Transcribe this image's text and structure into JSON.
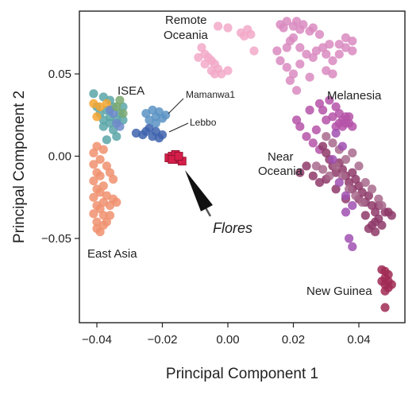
{
  "chart_data": {
    "type": "scatter",
    "xlabel": "Principal Component 1",
    "ylabel": "Principal Component 2",
    "xlim": [
      -0.045,
      0.053
    ],
    "ylim": [
      -0.098,
      0.087
    ],
    "x_ticks": [
      -0.04,
      -0.02,
      0.0,
      0.02,
      0.04
    ],
    "x_tick_labels": [
      "−0.04",
      "−0.02",
      "0.00",
      "0.02",
      "0.04"
    ],
    "y_ticks": [
      -0.05,
      0.0,
      0.05
    ],
    "y_tick_labels": [
      "−0.05",
      "0.00",
      "0.05"
    ],
    "grid": false,
    "legend": "none",
    "series": [
      {
        "name": "East Asia",
        "color": "#f0916e",
        "points": [
          [
            -0.041,
            -0.005
          ],
          [
            -0.04,
            -0.01
          ],
          [
            -0.041,
            -0.015
          ],
          [
            -0.04,
            -0.02
          ],
          [
            -0.041,
            -0.025
          ],
          [
            -0.04,
            -0.03
          ],
          [
            -0.041,
            -0.035
          ],
          [
            -0.04,
            -0.04
          ],
          [
            -0.04,
            -0.044
          ],
          [
            -0.039,
            -0.012
          ],
          [
            -0.039,
            -0.022
          ],
          [
            -0.039,
            -0.032
          ],
          [
            -0.038,
            -0.018
          ],
          [
            -0.038,
            -0.028
          ],
          [
            -0.037,
            -0.024
          ],
          [
            -0.036,
            -0.03
          ],
          [
            -0.035,
            -0.026
          ],
          [
            -0.034,
            -0.028
          ],
          [
            -0.038,
            -0.036
          ],
          [
            -0.037,
            -0.04
          ],
          [
            -0.041,
            0.002
          ],
          [
            -0.039,
            -0.002
          ],
          [
            -0.038,
            0.004
          ],
          [
            -0.037,
            -0.006
          ],
          [
            -0.036,
            -0.01
          ],
          [
            -0.035,
            -0.014
          ],
          [
            -0.04,
            0.006
          ],
          [
            -0.039,
            -0.046
          ],
          [
            -0.038,
            -0.042
          ],
          [
            -0.036,
            -0.036
          ]
        ]
      },
      {
        "name": "ISEA",
        "color": "#5aa6a8",
        "points": [
          [
            -0.041,
            0.038
          ],
          [
            -0.038,
            0.036
          ],
          [
            -0.036,
            0.034
          ],
          [
            -0.035,
            0.03
          ],
          [
            -0.037,
            0.028
          ],
          [
            -0.039,
            0.026
          ],
          [
            -0.034,
            0.022
          ],
          [
            -0.036,
            0.02
          ],
          [
            -0.038,
            0.018
          ],
          [
            -0.035,
            0.016
          ],
          [
            -0.033,
            0.026
          ],
          [
            -0.032,
            0.03
          ],
          [
            -0.034,
            0.012
          ],
          [
            -0.037,
            0.01
          ],
          [
            -0.04,
            0.03
          ],
          [
            -0.038,
            0.022
          ],
          [
            -0.036,
            0.024
          ],
          [
            -0.032,
            0.022
          ]
        ]
      },
      {
        "name": "ISEA (orange)",
        "color": "#f5a630",
        "points": [
          [
            -0.041,
            0.032
          ],
          [
            -0.039,
            0.03
          ],
          [
            -0.037,
            0.032
          ],
          [
            -0.04,
            0.024
          ]
        ]
      },
      {
        "name": "ISEA (blue)",
        "color": "#6d89c9",
        "points": [
          [
            -0.036,
            0.028
          ],
          [
            -0.034,
            0.02
          ],
          [
            -0.035,
            0.026
          ],
          [
            -0.033,
            0.018
          ]
        ]
      },
      {
        "name": "ISEA (green)",
        "color": "#7aa86e",
        "points": [
          [
            -0.034,
            0.03
          ],
          [
            -0.032,
            0.026
          ],
          [
            -0.033,
            0.034
          ]
        ]
      },
      {
        "name": "Mamanwa1",
        "color": "#5b93c4",
        "points": [
          [
            -0.025,
            0.026
          ],
          [
            -0.023,
            0.028
          ],
          [
            -0.022,
            0.024
          ],
          [
            -0.021,
            0.027
          ],
          [
            -0.02,
            0.023
          ],
          [
            -0.019,
            0.025
          ],
          [
            -0.024,
            0.022
          ],
          [
            -0.022,
            0.02
          ]
        ]
      },
      {
        "name": "Lebbo",
        "color": "#3e63ad",
        "points": [
          [
            -0.028,
            0.014
          ],
          [
            -0.026,
            0.013
          ],
          [
            -0.025,
            0.015
          ],
          [
            -0.023,
            0.012
          ],
          [
            -0.022,
            0.015
          ],
          [
            -0.021,
            0.011
          ],
          [
            -0.02,
            0.013
          ],
          [
            -0.024,
            0.017
          ]
        ]
      },
      {
        "name": "Flores",
        "color": "#d51e4a",
        "points": [
          [
            -0.018,
            -0.001
          ],
          [
            -0.017,
            0.0
          ],
          [
            -0.016,
            -0.002
          ],
          [
            -0.015,
            -0.001
          ],
          [
            -0.016,
            0.001
          ],
          [
            -0.014,
            -0.003
          ],
          [
            -0.017,
            -0.002
          ],
          [
            -0.015,
            0.0
          ]
        ]
      },
      {
        "name": "Remote Oceania",
        "color": "#f2a9c8",
        "points": [
          [
            -0.003,
            0.079
          ],
          [
            0.0,
            0.078
          ],
          [
            0.004,
            0.075
          ],
          [
            0.006,
            0.077
          ],
          [
            0.005,
            0.073
          ],
          [
            0.007,
            0.074
          ],
          [
            0.008,
            0.064
          ],
          [
            -0.008,
            0.066
          ],
          [
            -0.007,
            0.062
          ],
          [
            -0.006,
            0.06
          ],
          [
            -0.005,
            0.058
          ],
          [
            -0.004,
            0.056
          ],
          [
            -0.007,
            0.056
          ],
          [
            -0.005,
            0.052
          ],
          [
            -0.004,
            0.05
          ],
          [
            -0.002,
            0.05
          ],
          [
            -0.003,
            0.053
          ],
          [
            0.0,
            0.052
          ],
          [
            -0.009,
            0.06
          ]
        ]
      },
      {
        "name": "Near Oceania (light)",
        "color": "#d98ac0",
        "points": [
          [
            0.016,
            0.08
          ],
          [
            0.017,
            0.078
          ],
          [
            0.018,
            0.082
          ],
          [
            0.02,
            0.079
          ],
          [
            0.021,
            0.082
          ],
          [
            0.022,
            0.077
          ],
          [
            0.023,
            0.08
          ],
          [
            0.025,
            0.076
          ],
          [
            0.026,
            0.078
          ],
          [
            0.028,
            0.074
          ],
          [
            0.02,
            0.072
          ],
          [
            0.018,
            0.066
          ],
          [
            0.019,
            0.07
          ],
          [
            0.022,
            0.066
          ],
          [
            0.024,
            0.062
          ],
          [
            0.026,
            0.06
          ],
          [
            0.027,
            0.064
          ],
          [
            0.029,
            0.066
          ],
          [
            0.03,
            0.062
          ],
          [
            0.032,
            0.058
          ],
          [
            0.034,
            0.068
          ],
          [
            0.036,
            0.066
          ],
          [
            0.038,
            0.064
          ],
          [
            0.038,
            0.07
          ],
          [
            0.036,
            0.072
          ],
          [
            0.034,
            0.062
          ],
          [
            0.031,
            0.068
          ],
          [
            0.015,
            0.064
          ],
          [
            0.016,
            0.058
          ],
          [
            0.018,
            0.054
          ],
          [
            0.02,
            0.05
          ],
          [
            0.022,
            0.056
          ],
          [
            0.03,
            0.052
          ],
          [
            0.032,
            0.05
          ],
          [
            0.025,
            0.048
          ],
          [
            0.019,
            0.046
          ],
          [
            0.021,
            0.04
          ]
        ]
      },
      {
        "name": "Melanesia",
        "color": "#b553a8",
        "points": [
          [
            0.031,
            0.034
          ],
          [
            0.033,
            0.03
          ],
          [
            0.034,
            0.026
          ],
          [
            0.035,
            0.022
          ],
          [
            0.036,
            0.024
          ],
          [
            0.037,
            0.02
          ],
          [
            0.034,
            0.02
          ],
          [
            0.032,
            0.024
          ],
          [
            0.033,
            0.018
          ],
          [
            0.035,
            0.018
          ],
          [
            0.036,
            0.02
          ],
          [
            0.037,
            0.024
          ],
          [
            0.038,
            0.018
          ],
          [
            0.029,
            0.028
          ],
          [
            0.03,
            0.022
          ],
          [
            0.027,
            0.016
          ],
          [
            0.026,
            0.008
          ],
          [
            0.028,
            0.004
          ],
          [
            0.024,
            0.012
          ],
          [
            0.022,
            0.018
          ],
          [
            0.021,
            0.022
          ],
          [
            0.025,
            0.028
          ],
          [
            0.028,
            0.032
          ]
        ]
      },
      {
        "name": "Near Oceania (dark)",
        "color": "#8e3a6a",
        "points": [
          [
            0.029,
            0.006
          ],
          [
            0.03,
            0.002
          ],
          [
            0.031,
            -0.002
          ],
          [
            0.032,
            -0.006
          ],
          [
            0.033,
            -0.01
          ],
          [
            0.034,
            -0.004
          ],
          [
            0.035,
            -0.008
          ],
          [
            0.036,
            -0.012
          ],
          [
            0.037,
            -0.016
          ],
          [
            0.038,
            -0.02
          ],
          [
            0.039,
            -0.014
          ],
          [
            0.04,
            -0.018
          ],
          [
            0.041,
            -0.022
          ],
          [
            0.042,
            -0.028
          ],
          [
            0.043,
            -0.024
          ],
          [
            0.044,
            -0.03
          ],
          [
            0.045,
            -0.034
          ],
          [
            0.046,
            -0.038
          ],
          [
            0.04,
            -0.026
          ],
          [
            0.038,
            -0.01
          ],
          [
            0.026,
            -0.012
          ],
          [
            0.028,
            -0.016
          ],
          [
            0.03,
            -0.014
          ],
          [
            0.024,
            -0.006
          ],
          [
            0.022,
            -0.01
          ],
          [
            0.033,
            -0.02
          ],
          [
            0.036,
            -0.026
          ],
          [
            0.046,
            -0.03
          ],
          [
            0.048,
            -0.034
          ],
          [
            0.049,
            -0.034
          ],
          [
            0.05,
            -0.036
          ],
          [
            0.045,
            -0.04
          ],
          [
            0.047,
            -0.042
          ],
          [
            0.042,
            -0.036
          ],
          [
            0.043,
            -0.044
          ],
          [
            0.044,
            -0.042
          ],
          [
            0.045,
            -0.046
          ]
        ]
      },
      {
        "name": "Near Oceania (mauve)",
        "color": "#a86a8c",
        "points": [
          [
            0.033,
            -0.006
          ],
          [
            0.035,
            -0.012
          ],
          [
            0.037,
            -0.02
          ],
          [
            0.039,
            -0.024
          ],
          [
            0.041,
            -0.028
          ],
          [
            0.031,
            -0.012
          ],
          [
            0.029,
            -0.008
          ],
          [
            0.027,
            -0.006
          ],
          [
            0.042,
            -0.016
          ],
          [
            0.044,
            -0.02
          ],
          [
            0.046,
            -0.026
          ],
          [
            0.047,
            -0.03
          ],
          [
            0.036,
            -0.002
          ],
          [
            0.038,
            0.002
          ],
          [
            0.04,
            -0.006
          ],
          [
            0.034,
            0.004
          ],
          [
            0.032,
            0.008
          ],
          [
            0.03,
            0.012
          ]
        ]
      },
      {
        "name": "Melanesia (purple)",
        "color": "#a050b0",
        "points": [
          [
            0.036,
            -0.024
          ],
          [
            0.038,
            -0.03
          ],
          [
            0.037,
            -0.05
          ],
          [
            0.038,
            -0.055
          ],
          [
            0.036,
            -0.034
          ],
          [
            0.034,
            -0.016
          ],
          [
            0.032,
            -0.002
          ],
          [
            0.035,
            0.006
          ],
          [
            0.033,
            0.014
          ]
        ]
      },
      {
        "name": "New Guinea",
        "color": "#a02a54",
        "points": [
          [
            0.047,
            -0.069
          ],
          [
            0.048,
            -0.07
          ],
          [
            0.049,
            -0.072
          ],
          [
            0.048,
            -0.074
          ],
          [
            0.049,
            -0.076
          ],
          [
            0.048,
            -0.078
          ],
          [
            0.049,
            -0.08
          ],
          [
            0.048,
            -0.082
          ],
          [
            0.05,
            -0.078
          ],
          [
            0.047,
            -0.076
          ],
          [
            0.048,
            -0.092
          ]
        ]
      }
    ],
    "annotations": [
      {
        "text": "Remote Oceania",
        "line1": "Remote",
        "line2": "Oceania"
      },
      {
        "text": "ISEA"
      },
      {
        "text": "Mamanwa1"
      },
      {
        "text": "Lebbo"
      },
      {
        "text": "Melanesia"
      },
      {
        "text": "Near Oceania",
        "line1": "Near",
        "line2": "Oceania"
      },
      {
        "text": "East Asia"
      },
      {
        "text": "New Guinea"
      },
      {
        "text": "Flores"
      }
    ]
  }
}
